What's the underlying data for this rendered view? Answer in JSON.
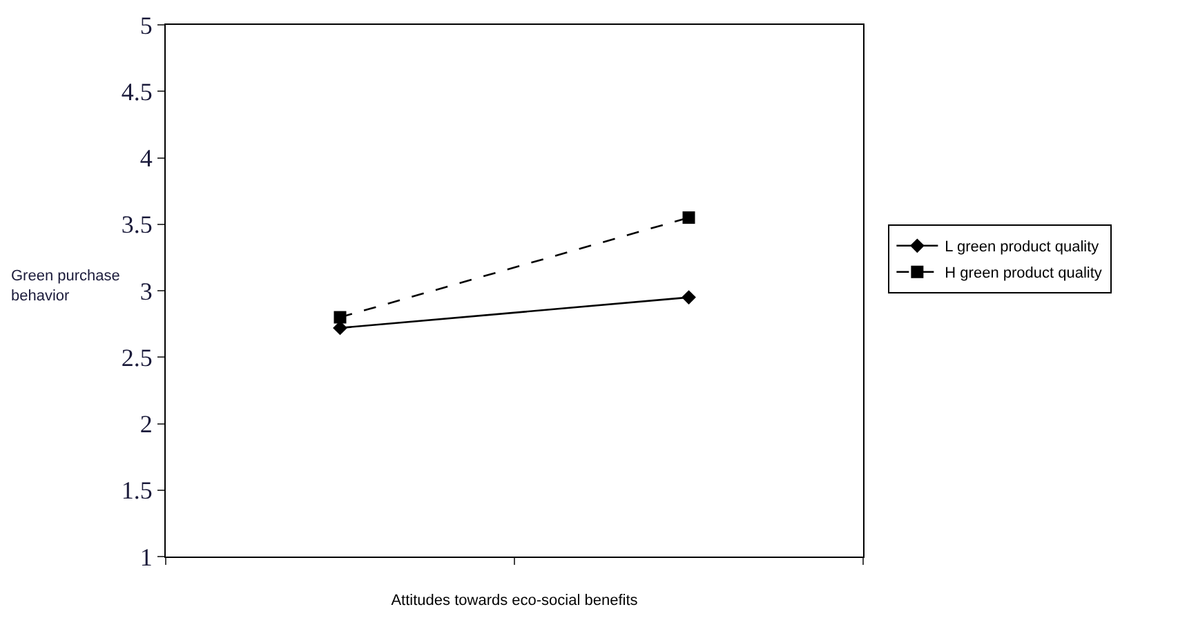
{
  "chart_data": {
    "type": "line",
    "xlabel": "Attitudes towards eco-social benefits",
    "ylabel": "Green purchase behavior",
    "categories": [
      null,
      null
    ],
    "series": [
      {
        "name": "L green product quality",
        "color": "#000000",
        "values": [
          2.72,
          2.95
        ],
        "marker": "diamond",
        "line_style": "solid"
      },
      {
        "name": "H green product quality",
        "color": "#000000",
        "values": [
          2.8,
          3.55
        ],
        "marker": "square",
        "line_style": "dashed"
      }
    ],
    "ylim": [
      1,
      5
    ],
    "yticks": [
      1,
      1.5,
      2,
      2.5,
      3,
      3.5,
      4,
      4.5,
      5
    ],
    "grid": false,
    "legend": "right",
    "tick_labels": "y"
  }
}
